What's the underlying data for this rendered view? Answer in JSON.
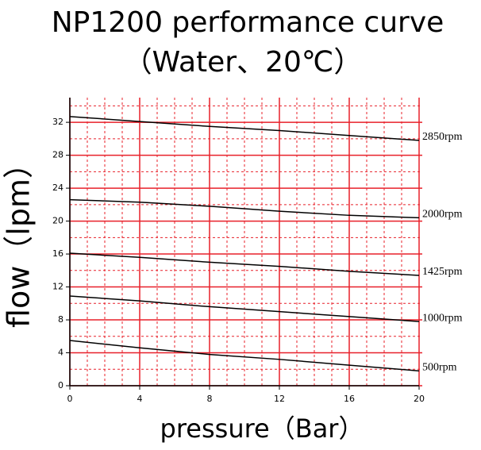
{
  "chart_data": {
    "type": "line",
    "title": "NP1200 performance curve",
    "subtitle": "（Water、20℃）",
    "x_label": "pressure（Bar）",
    "y_label": "flow（lpm）",
    "x": [
      0,
      4,
      8,
      12,
      16,
      20
    ],
    "series": [
      {
        "name": "2850rpm",
        "color": "#000000",
        "values": [
          32.7,
          32.1,
          31.5,
          31.0,
          30.4,
          29.8
        ]
      },
      {
        "name": "2000rpm",
        "color": "#000000",
        "values": [
          22.6,
          22.3,
          21.8,
          21.2,
          20.7,
          20.4
        ]
      },
      {
        "name": "1425rpm",
        "color": "#000000",
        "values": [
          16.1,
          15.6,
          15.0,
          14.5,
          13.9,
          13.4
        ]
      },
      {
        "name": "1000rpm",
        "color": "#000000",
        "values": [
          10.9,
          10.3,
          9.6,
          9.0,
          8.4,
          7.8
        ]
      },
      {
        "name": "500rpm",
        "color": "#000000",
        "values": [
          5.5,
          4.6,
          3.8,
          3.2,
          2.5,
          1.8
        ]
      }
    ],
    "xlim": [
      0,
      20
    ],
    "ylim": [
      0,
      35
    ],
    "xticks": [
      0,
      4,
      8,
      12,
      16,
      20
    ],
    "yticks": [
      0,
      4,
      8,
      12,
      16,
      20,
      24,
      28,
      32
    ],
    "minor_xticks": [
      1,
      2,
      3,
      5,
      6,
      7,
      9,
      10,
      11,
      13,
      14,
      15,
      17,
      18,
      19
    ],
    "minor_yticks": [
      2,
      6,
      10,
      14,
      18,
      22,
      26,
      30,
      34
    ],
    "grid": true,
    "grid_color": "#e8202a"
  }
}
